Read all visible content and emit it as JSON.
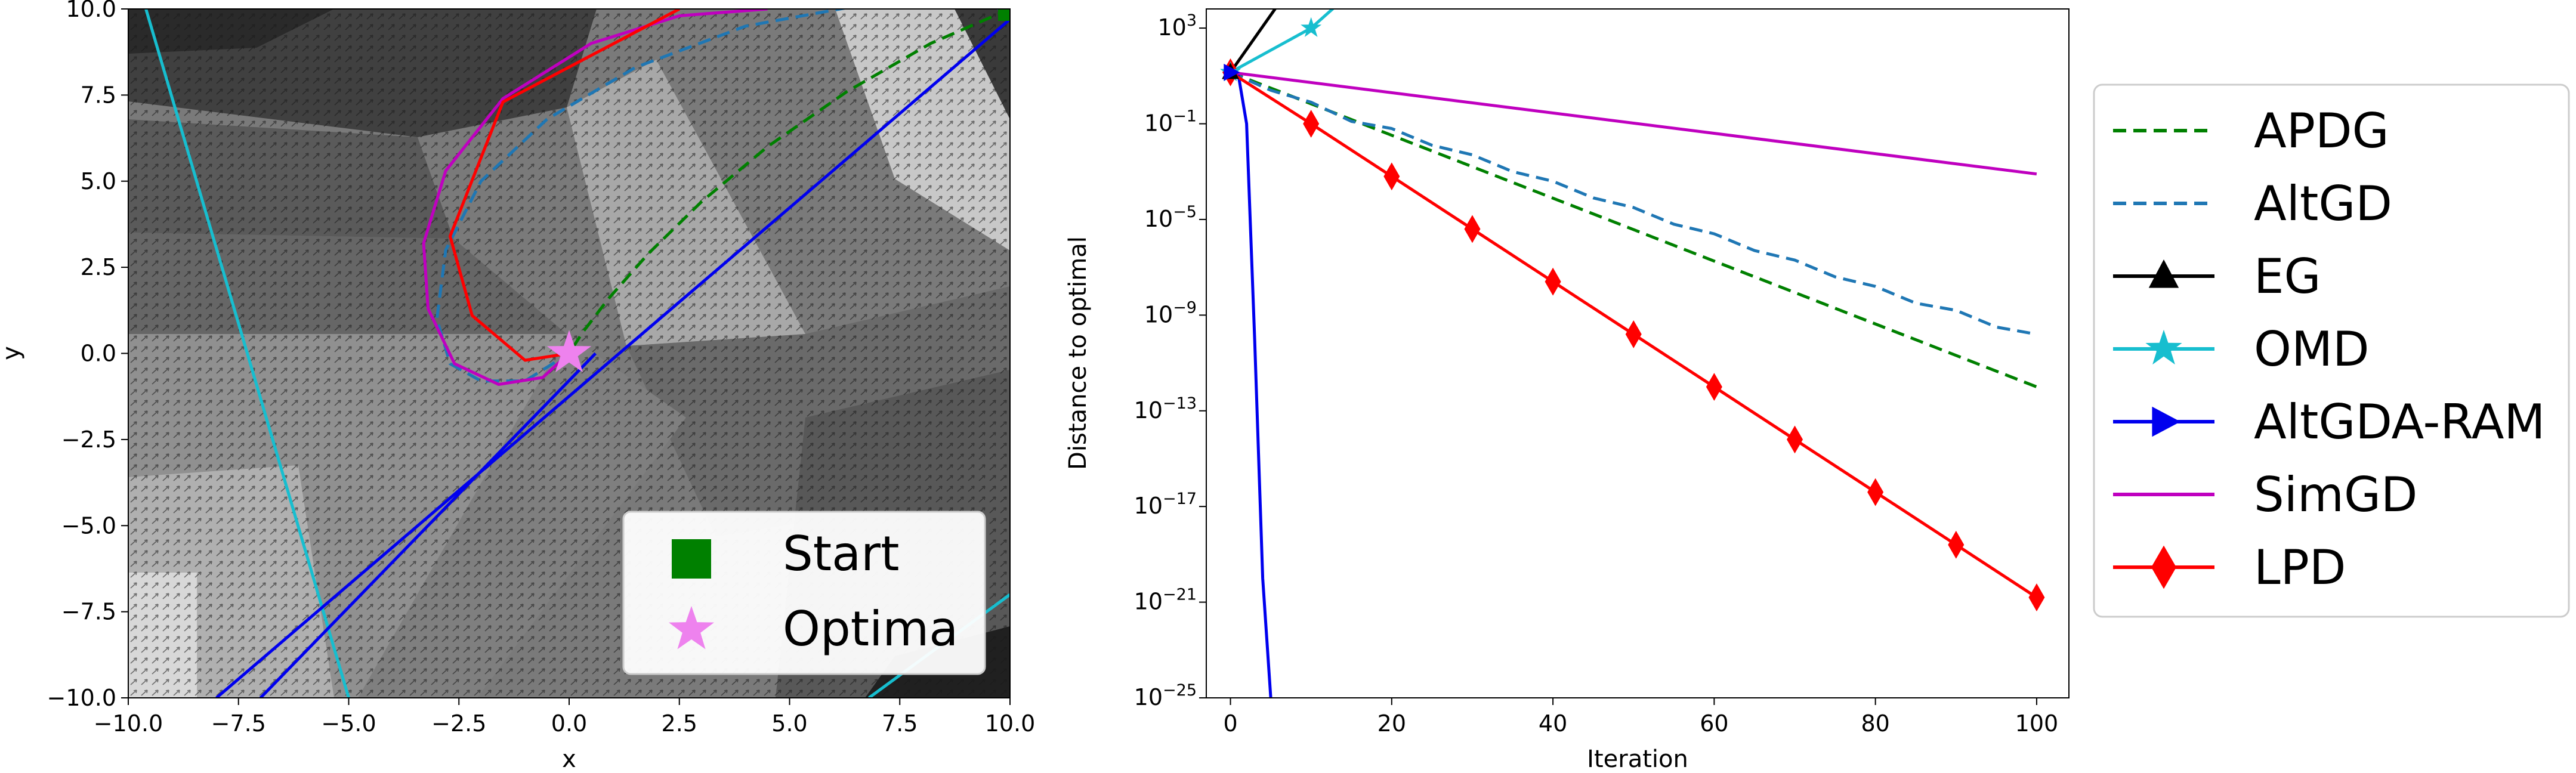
{
  "chart_data": [
    {
      "type": "scatter",
      "title": "",
      "xlabel": "x",
      "ylabel": "y",
      "xlim": [
        -10,
        10
      ],
      "ylim": [
        -10,
        10
      ],
      "xticks": [
        "−10.0",
        "−7.5",
        "−5.0",
        "−2.5",
        "0.0",
        "2.5",
        "5.0",
        "7.5",
        "10.0"
      ],
      "yticks": [
        "−10.0",
        "−7.5",
        "−5.0",
        "−2.5",
        "0.0",
        "2.5",
        "5.0",
        "7.5",
        "10.0"
      ],
      "background": "grayscale shaded regions with a dense arrow field",
      "legend": {
        "position": "lower-right",
        "entries": [
          {
            "label": "Start",
            "marker": "square",
            "color": "#008000"
          },
          {
            "label": "Optima",
            "marker": "star",
            "color": "#ee82ee"
          }
        ]
      },
      "points": [
        {
          "name": "Start",
          "x": 10,
          "y": 10,
          "color": "#008000",
          "marker": "square"
        },
        {
          "name": "Optima",
          "x": 0,
          "y": 0,
          "color": "#ee82ee",
          "marker": "star"
        }
      ],
      "trajectories": [
        {
          "name": "APDG",
          "color": "#008000",
          "dash": "dashed",
          "x": [
            10,
            8.2,
            6.3,
            4.5,
            3.0,
            1.8,
            0.9,
            0.3,
            0
          ],
          "y": [
            10,
            9.0,
            7.6,
            6.0,
            4.4,
            2.9,
            1.6,
            0.6,
            0
          ]
        },
        {
          "name": "AltGD",
          "color": "#1f77b4",
          "dash": "dashed",
          "x": [
            10,
            7.0,
            4.0,
            1.5,
            -0.5,
            -2.0,
            -2.8,
            -3.0,
            -2.7,
            -2.0,
            -1.0,
            0
          ],
          "y": [
            10,
            10.2,
            9.5,
            8.3,
            6.8,
            5.0,
            3.0,
            1.0,
            -0.3,
            -0.8,
            -0.8,
            0
          ]
        },
        {
          "name": "EG",
          "color": "#000000",
          "dash": "solid",
          "x": [],
          "y": []
        },
        {
          "name": "OMD",
          "color": "#17becf",
          "dash": "solid",
          "segments": [
            {
              "x": [
                -9.6,
                -5.0
              ],
              "y": [
                10,
                -10
              ]
            },
            {
              "x": [
                6.8,
                10
              ],
              "y": [
                -10,
                -7.0
              ]
            }
          ]
        },
        {
          "name": "AltGDA-RAM",
          "color": "#0000ee",
          "dash": "solid",
          "segments": [
            {
              "x": [
                -8.0,
                10
              ],
              "y": [
                -10,
                9.7
              ]
            },
            {
              "x": [
                -7.0,
                0.6
              ],
              "y": [
                -10,
                0
              ]
            }
          ]
        },
        {
          "name": "SimGD",
          "color": "#bf00bf",
          "dash": "solid",
          "x": [
            4.5,
            2.5,
            0.5,
            -1.5,
            -2.8,
            -3.3,
            -3.2,
            -2.6,
            -1.6,
            -0.6,
            0
          ],
          "y": [
            10,
            9.8,
            9.0,
            7.4,
            5.3,
            3.2,
            1.3,
            -0.3,
            -0.9,
            -0.7,
            0
          ]
        },
        {
          "name": "LPD",
          "color": "#ff0000",
          "dash": "solid",
          "x": [
            2.5,
            -1.5,
            -2.7,
            -2.2,
            -1.0,
            0
          ],
          "y": [
            10,
            7.3,
            3.4,
            1.1,
            -0.2,
            0
          ]
        }
      ]
    },
    {
      "type": "line",
      "title": "",
      "xlabel": "Iteration",
      "ylabel": "Distance to optimal",
      "xlim": [
        -3,
        104
      ],
      "yscale": "log",
      "ylim_log10": [
        -25,
        3.8
      ],
      "xticks": [
        0,
        20,
        40,
        60,
        80,
        100
      ],
      "yticks": [
        {
          "exp": 3,
          "label": "10^3"
        },
        {
          "exp": -1,
          "label": "10^−1"
        },
        {
          "exp": -5,
          "label": "10^−5"
        },
        {
          "exp": -9,
          "label": "10^−9"
        },
        {
          "exp": -13,
          "label": "10^−13"
        },
        {
          "exp": -17,
          "label": "10^−17"
        },
        {
          "exp": -21,
          "label": "10^−21"
        },
        {
          "exp": -25,
          "label": "10^−25"
        }
      ],
      "legend": {
        "position": "outside-right",
        "entries": [
          "APDG",
          "AltGD",
          "EG",
          "OMD",
          "AltGDA-RAM",
          "SimGD",
          "LPD"
        ]
      },
      "series": [
        {
          "name": "APDG",
          "color": "#008000",
          "style": "dashed",
          "marker": "none",
          "x": [
            0,
            100
          ],
          "log10_y": [
            1.15,
            -12.0
          ]
        },
        {
          "name": "AltGD",
          "color": "#1f77b4",
          "style": "dashed",
          "marker": "none",
          "x": [
            0,
            5,
            10,
            15,
            20,
            25,
            30,
            35,
            40,
            45,
            50,
            55,
            60,
            65,
            70,
            75,
            80,
            85,
            90,
            95,
            100
          ],
          "log10_y": [
            1.15,
            0.4,
            -0.1,
            -0.9,
            -1.2,
            -1.9,
            -2.3,
            -3.0,
            -3.4,
            -4.1,
            -4.5,
            -5.2,
            -5.6,
            -6.3,
            -6.7,
            -7.4,
            -7.8,
            -8.5,
            -8.8,
            -9.5,
            -9.8
          ]
        },
        {
          "name": "EG",
          "color": "#000000",
          "style": "solid",
          "marker": "triangle",
          "x": [
            0,
            7
          ],
          "log10_y": [
            1.15,
            4.5
          ]
        },
        {
          "name": "OMD",
          "color": "#17becf",
          "style": "solid",
          "marker": "star",
          "x": [
            0,
            10,
            15
          ],
          "log10_y": [
            1.15,
            3.0,
            4.5
          ]
        },
        {
          "name": "AltGDA-RAM",
          "color": "#0000ee",
          "style": "solid",
          "marker": "right-triangle",
          "x": [
            0,
            1,
            2,
            3,
            4,
            5
          ],
          "log10_y": [
            1.15,
            1.0,
            -1.0,
            -10.0,
            -20.0,
            -25.0
          ]
        },
        {
          "name": "SimGD",
          "color": "#bf00bf",
          "style": "solid",
          "marker": "none",
          "x": [
            0,
            100
          ],
          "log10_y": [
            1.15,
            -3.1
          ]
        },
        {
          "name": "LPD",
          "color": "#ff0000",
          "style": "solid",
          "marker": "diamond",
          "x": [
            0,
            10,
            20,
            30,
            40,
            50,
            60,
            70,
            80,
            90,
            100
          ],
          "log10_y": [
            1.15,
            -1.0,
            -3.2,
            -5.4,
            -7.6,
            -9.8,
            -12.0,
            -14.2,
            -16.4,
            -18.6,
            -20.8
          ]
        }
      ]
    }
  ]
}
